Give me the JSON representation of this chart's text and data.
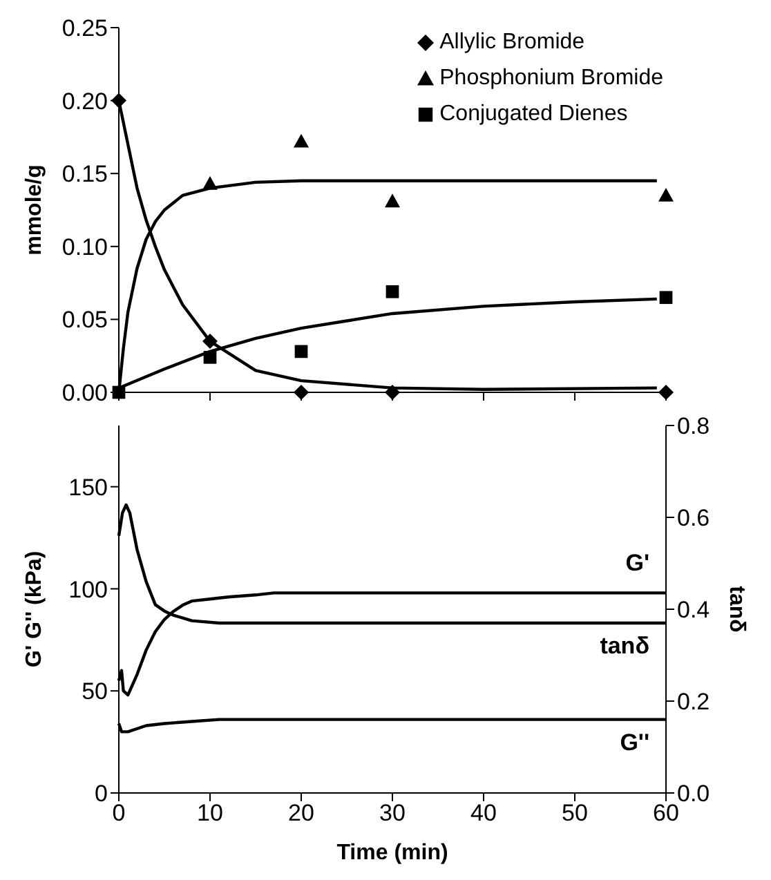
{
  "chart_data": [
    {
      "type": "scatter",
      "ylabel": "mmole/g",
      "xlim": [
        0,
        60
      ],
      "xticks": [
        0,
        10,
        20,
        30,
        40,
        50,
        60
      ],
      "ylim": [
        0,
        0.25
      ],
      "yticks": [
        {
          "value": 0,
          "label": "0.00"
        },
        {
          "value": 0.05,
          "label": "0.05"
        },
        {
          "value": 0.1,
          "label": "0.10"
        },
        {
          "value": 0.15,
          "label": "0.15"
        },
        {
          "value": 0.2,
          "label": "0.20"
        },
        {
          "value": 0.25,
          "label": "0.25"
        }
      ],
      "tick_labels": "y",
      "legend": "top right",
      "grid": false,
      "series": [
        {
          "type": "line",
          "color": "#000000",
          "marker": "none",
          "x": [
            0,
            1,
            2,
            3,
            4,
            5,
            7,
            10,
            15,
            20,
            30,
            40,
            59
          ],
          "values": [
            0.2,
            0.17,
            0.14,
            0.118,
            0.1,
            0.084,
            0.06,
            0.035,
            0.015,
            0.008,
            0.003,
            0.002,
            0.003
          ]
        },
        {
          "type": "line",
          "color": "#000000",
          "marker": "none",
          "x": [
            0,
            0.5,
            1,
            2,
            3,
            4,
            5,
            7,
            10,
            15,
            20,
            30,
            59
          ],
          "values": [
            0,
            0.03,
            0.055,
            0.085,
            0.105,
            0.117,
            0.125,
            0.135,
            0.14,
            0.144,
            0.145,
            0.145,
            0.145
          ]
        },
        {
          "type": "line",
          "color": "#000000",
          "marker": "none",
          "x": [
            0,
            5,
            10,
            15,
            20,
            25,
            30,
            40,
            50,
            59
          ],
          "values": [
            0.003,
            0.016,
            0.028,
            0.037,
            0.044,
            0.049,
            0.054,
            0.059,
            0.062,
            0.064
          ]
        },
        {
          "name": "Allylic Bromide",
          "color": "#000000",
          "marker": "diamond",
          "x": [
            0,
            10,
            20,
            30,
            60
          ],
          "values": [
            0.2,
            0.035,
            0,
            0,
            0
          ]
        },
        {
          "name": "Phosphonium Bromide",
          "color": "#000000",
          "marker": "triangle",
          "x": [
            10,
            20,
            30,
            60
          ],
          "values": [
            0.143,
            0.172,
            0.131,
            0.135
          ]
        },
        {
          "name": "Conjugated Dienes",
          "color": "#000000",
          "marker": "square",
          "x": [
            0,
            10,
            20,
            30,
            60
          ],
          "values": [
            0,
            0.024,
            0.028,
            0.069,
            0.065
          ]
        }
      ]
    },
    {
      "type": "line",
      "xlabel": "Time (min)",
      "ylabel": "G' G'' (kPa)",
      "y2label": "tanδ",
      "xlim": [
        0,
        60
      ],
      "xticks": [
        0,
        10,
        20,
        30,
        40,
        50,
        60
      ],
      "ylim": [
        0,
        180
      ],
      "yticks": [
        0,
        50,
        100,
        150
      ],
      "y2lim": [
        0,
        0.8
      ],
      "y2ticks": [
        {
          "value": 0,
          "label": "0.0"
        },
        {
          "value": 0.2,
          "label": "0.2"
        },
        {
          "value": 0.4,
          "label": "0.4"
        },
        {
          "value": 0.6,
          "label": "0.6"
        },
        {
          "value": 0.8,
          "label": "0.8"
        }
      ],
      "grid": false,
      "legend": false,
      "marker": "none",
      "series": [
        {
          "name": "G'",
          "color": "#000000",
          "x": [
            0,
            0.3,
            0.5,
            1,
            2,
            3,
            4,
            5,
            6,
            7,
            8,
            10,
            12,
            15,
            17,
            60
          ],
          "values": [
            55,
            60,
            50,
            48,
            58,
            70,
            79,
            85,
            89,
            92,
            94,
            95,
            96,
            97,
            98,
            98
          ]
        },
        {
          "name": "tanδ",
          "color": "#000000",
          "axis": "y2",
          "x": [
            0,
            0.4,
            0.8,
            1.2,
            2,
            3,
            4,
            5,
            6,
            8,
            11,
            60
          ],
          "values": [
            0.56,
            0.61,
            0.627,
            0.61,
            0.53,
            0.46,
            0.41,
            0.396,
            0.387,
            0.375,
            0.37,
            0.37
          ]
        },
        {
          "name": "G''",
          "color": "#000000",
          "x": [
            0,
            0.3,
            1,
            3,
            5,
            8,
            11,
            60
          ],
          "values": [
            34,
            30,
            30,
            33,
            34,
            35,
            36,
            36
          ]
        }
      ]
    }
  ]
}
